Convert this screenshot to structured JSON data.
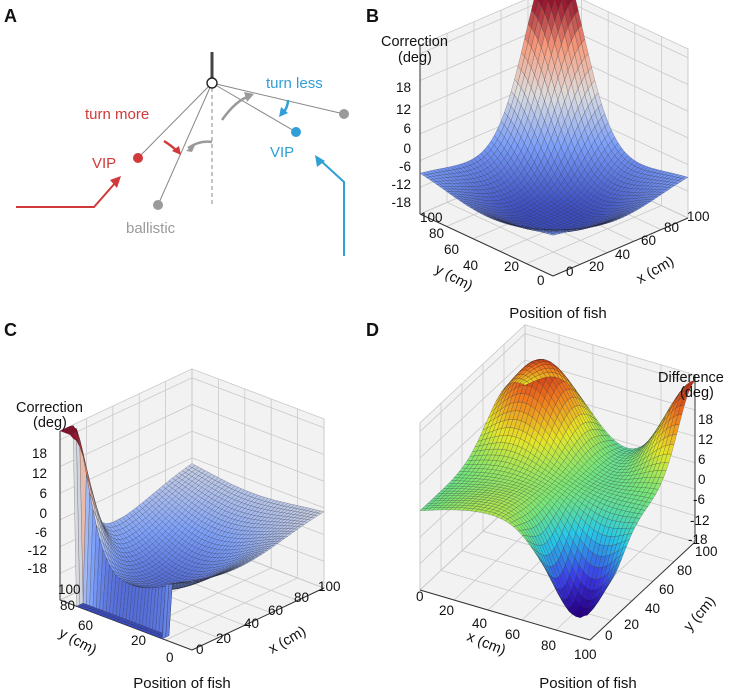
{
  "panel_letters": [
    "A",
    "B",
    "C",
    "D"
  ],
  "diagram": {
    "turn_more": "turn more",
    "turn_less": "turn less",
    "vip_left": "VIP",
    "vip_right": "VIP",
    "ballistic": "ballistic",
    "colors": {
      "red": "#d03a3a",
      "blue": "#2f9fd6",
      "gray": "#9a9a9a",
      "line": "#808080"
    }
  },
  "chart_data": [
    {
      "panel": "B",
      "type": "surface3d",
      "z_title_line1": "Correction",
      "z_title_line2": "(deg)",
      "x_label": "x (cm)",
      "y_label": "y (cm)",
      "caption": "Position of fish",
      "x_ticks": [
        "0",
        "20",
        "40",
        "60",
        "80",
        "100"
      ],
      "y_ticks": [
        "0",
        "20",
        "40",
        "60",
        "80",
        "100"
      ],
      "z_ticks": [
        "-18",
        "-12",
        "-6",
        "0",
        "6",
        "12",
        "18"
      ],
      "xlim": [
        0,
        100
      ],
      "ylim": [
        0,
        100
      ],
      "zlim": [
        -18,
        18
      ],
      "colormap": "coolwarm",
      "peak": {
        "x": 100,
        "y": 100,
        "value": 20
      },
      "trough": {
        "x": 50,
        "y": 50,
        "value": -18
      }
    },
    {
      "panel": "C",
      "type": "surface3d",
      "z_title_line1": "Correction",
      "z_title_line2": "(deg)",
      "x_label": "x (cm)",
      "y_label": "y (cm)",
      "caption": "Position of fish",
      "x_ticks": [
        "0",
        "20",
        "40",
        "60",
        "80",
        "100"
      ],
      "y_ticks": [
        "0",
        "20",
        "40",
        "60",
        "80",
        "100"
      ],
      "z_ticks": [
        "-18",
        "-12",
        "-6",
        "0",
        "6",
        "12",
        "18"
      ],
      "xlim": [
        0,
        100
      ],
      "ylim": [
        0,
        100
      ],
      "zlim": [
        -18,
        18
      ],
      "colormap": "coolwarm",
      "peak": {
        "x": 0,
        "y": 100,
        "value": 20
      },
      "trough": {
        "x": 30,
        "y": 55,
        "value": -18
      }
    },
    {
      "panel": "D",
      "type": "surface3d",
      "z_title_line1": "Difference",
      "z_title_line2": "(deg)",
      "x_label": "x (cm)",
      "y_label": "y (cm)",
      "caption": "Position of fish",
      "x_ticks": [
        "0",
        "20",
        "40",
        "60",
        "80",
        "100"
      ],
      "y_ticks": [
        "0",
        "20",
        "40",
        "60",
        "80",
        "100"
      ],
      "z_ticks": [
        "-18",
        "-12",
        "-6",
        "0",
        "6",
        "12",
        "18"
      ],
      "xlim": [
        0,
        100
      ],
      "ylim": [
        0,
        100
      ],
      "zlim": [
        -18,
        18
      ],
      "colormap": "jet",
      "peaks": [
        {
          "x": 20,
          "y": 80,
          "value": 20
        },
        {
          "x": 100,
          "y": 100,
          "value": 18
        }
      ],
      "trough": {
        "x": 80,
        "y": 20,
        "value": -18
      }
    }
  ]
}
